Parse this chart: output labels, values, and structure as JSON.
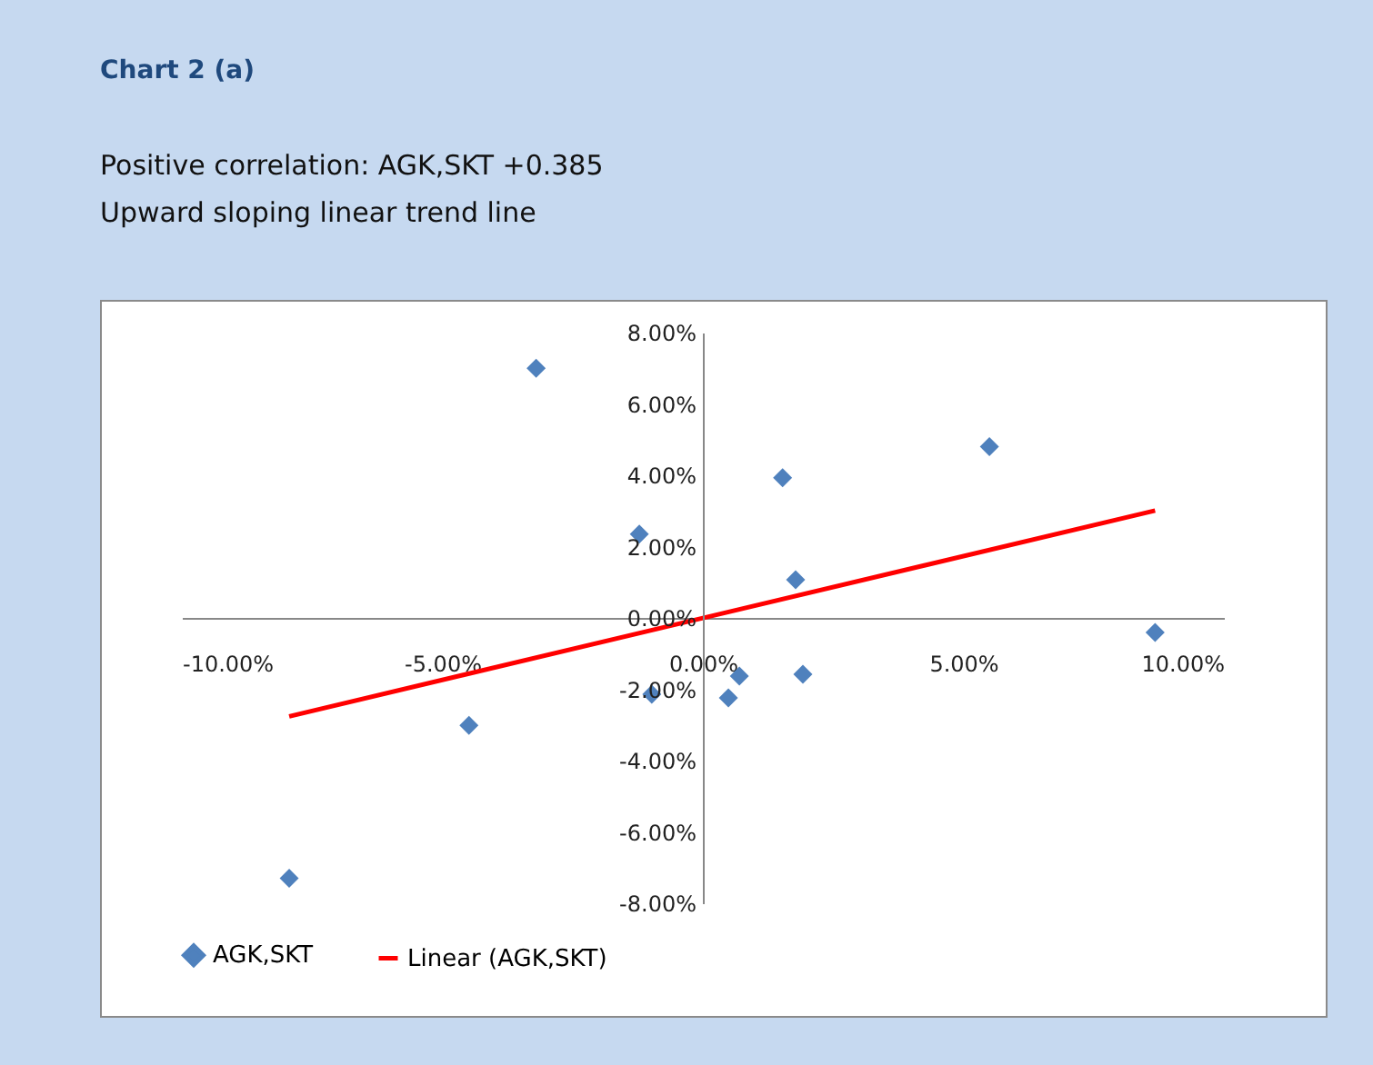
{
  "chart_data": {
    "type": "scatter",
    "title": "Chart 2 (a)",
    "subtitle": "Positive correlation: AGK,SKT +0.385\nUpward sloping linear trend line",
    "x": [
      -3.2,
      5.5,
      1.53,
      -1.22,
      1.78,
      8.68,
      0.7,
      1.92,
      -0.98,
      0.49,
      -4.49,
      -7.94
    ],
    "series": [
      {
        "name": "AGK,SKT",
        "color": "#4f81bd",
        "marker": "diamond",
        "values": [
          7.0,
          4.8,
          3.93,
          2.35,
          1.07,
          -0.41,
          -1.63,
          -1.58,
          -2.14,
          -2.24,
          -3.01,
          -7.3
        ]
      },
      {
        "name": "Linear (AGK,SKT)",
        "type": "line",
        "color": "#ff0000",
        "x": [
          -7.94,
          8.68
        ],
        "values": [
          -2.76,
          3.01
        ]
      }
    ],
    "legend": "bottom",
    "grid": false,
    "xlim": [
      -10,
      10
    ],
    "xticks": [
      {
        "value": -10,
        "label": "-10.00%"
      },
      {
        "value": -5,
        "label": "-5.00%"
      },
      {
        "value": 0,
        "label": "0.00%"
      },
      {
        "value": 5,
        "label": "5.00%"
      },
      {
        "value": 10,
        "label": "10.00%"
      }
    ],
    "ylim": [
      -8,
      8
    ],
    "yticks": [
      {
        "value": -8,
        "label": "-8.00%"
      },
      {
        "value": -6,
        "label": "-6.00%"
      },
      {
        "value": -4,
        "label": "-4.00%"
      },
      {
        "value": -2,
        "label": "-2.00%"
      },
      {
        "value": 0,
        "label": "0.00%"
      },
      {
        "value": 2,
        "label": "2.00%"
      },
      {
        "value": 4,
        "label": "4.00%"
      },
      {
        "value": 6,
        "label": "6.00%"
      },
      {
        "value": 8,
        "label": "8.00%"
      }
    ]
  }
}
